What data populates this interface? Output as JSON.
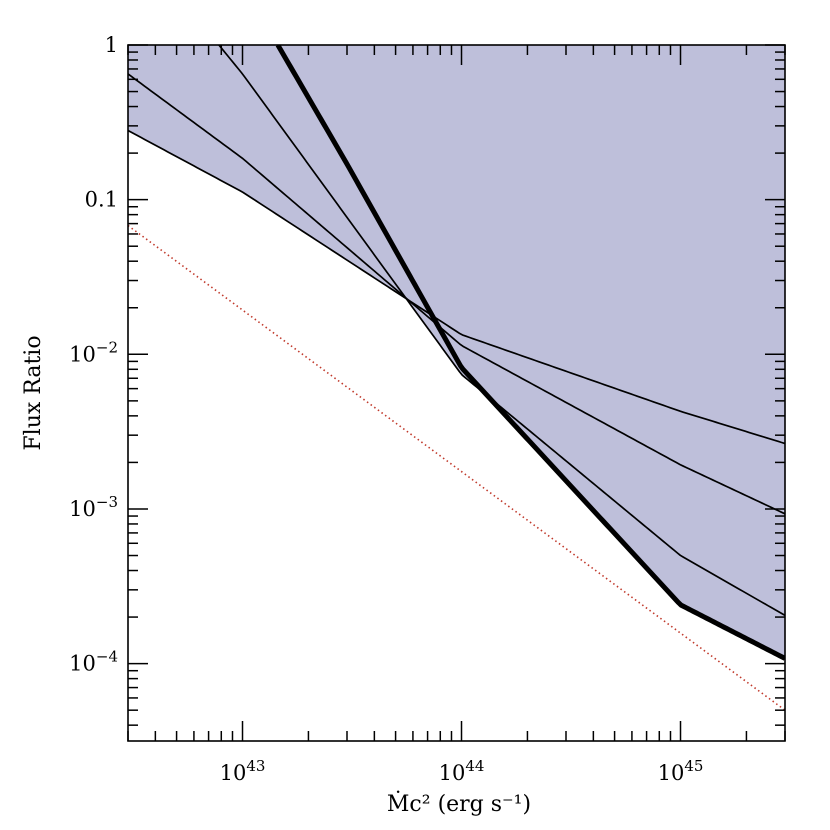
{
  "chart_data": {
    "type": "line",
    "title": "",
    "xlabel": "Ṁc² (erg s⁻¹)",
    "ylabel": "Flux Ratio",
    "x_scale": "log",
    "y_scale": "log",
    "xlim": [
      3e+42,
      3e+45
    ],
    "ylim": [
      3.16e-05,
      1
    ],
    "x_ticks": [
      {
        "value": 1e+43,
        "base": "10",
        "exp": "43"
      },
      {
        "value": 1e+44,
        "base": "10",
        "exp": "44"
      },
      {
        "value": 1e+45,
        "base": "10",
        "exp": "45"
      }
    ],
    "y_ticks": [
      {
        "value": 1,
        "text": "1"
      },
      {
        "value": 0.1,
        "text": "0.1"
      },
      {
        "value": 0.01,
        "base": "10",
        "exp": "−2"
      },
      {
        "value": 0.001,
        "base": "10",
        "exp": "−3"
      },
      {
        "value": 0.0001,
        "base": "10",
        "exp": "−4"
      }
    ],
    "grid": false,
    "shaded_region": {
      "description": "area above the lower envelope of the curves",
      "color": "#bebfda"
    },
    "series": [
      {
        "style": "solid-thin",
        "x": [
          3e+42,
          1e+43,
          1e+44,
          1e+45,
          3e+45
        ],
        "y": [
          0.28,
          0.112,
          0.0134,
          0.00428,
          0.00265
        ]
      },
      {
        "style": "solid-thin",
        "x": [
          3e+42,
          1e+43,
          1e+44,
          1e+45,
          3e+45
        ],
        "y": [
          0.65,
          0.185,
          0.0114,
          0.00193,
          0.00093
        ]
      },
      {
        "style": "solid-thin",
        "x": [
          7.8e+42,
          1e+43,
          1e+44,
          1e+45,
          3e+45
        ],
        "y": [
          1.0,
          0.65,
          0.0074,
          0.0005,
          0.000205
        ]
      },
      {
        "style": "solid-thick",
        "x": [
          1.45e+43,
          3e+43,
          1e+44,
          1e+45,
          3e+45
        ],
        "y": [
          1.0,
          0.17,
          0.0082,
          0.00024,
          0.000108
        ]
      },
      {
        "style": "dotted",
        "color": "#c0392b",
        "x": [
          3e+42,
          3e+45
        ],
        "y": [
          0.068,
          5e-05
        ]
      }
    ]
  }
}
